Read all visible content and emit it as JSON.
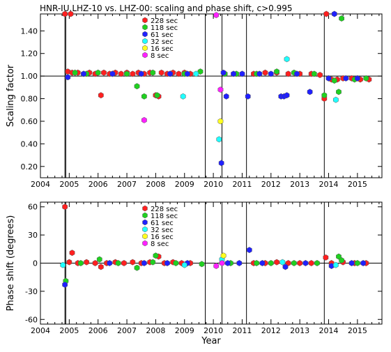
{
  "title": "HNR-IU.LHZ-10 vs. LHZ-00: scaling and phase shift, c>0.995",
  "chart_data": [
    {
      "type": "scatter",
      "ylabel": "Scaling factor",
      "xlim": [
        2004.0,
        2015.85
      ],
      "ylim": [
        0.1,
        1.55
      ],
      "yticks": [
        0.2,
        0.4,
        0.6,
        0.8,
        1.0,
        1.2,
        1.4
      ],
      "ytick_labels": [
        "0.20",
        "0.40",
        "0.60",
        "0.80",
        "1.00",
        "1.20",
        "1.40"
      ],
      "reference_line": 1.0,
      "event_lines": [
        2004.85,
        2004.88,
        2009.72,
        2010.3,
        2011.15,
        2013.85
      ],
      "legend": [
        {
          "label": "228 sec",
          "color": "#ff2020"
        },
        {
          "label": "118 sec",
          "color": "#20d020"
        },
        {
          "label": "61 sec",
          "color": "#2020ff"
        },
        {
          "label": "32 sec",
          "color": "#20ffff"
        },
        {
          "label": "16 sec",
          "color": "#ffff20"
        },
        {
          "label": "8 sec",
          "color": "#ff20ff"
        }
      ],
      "series": [
        {
          "name": "228 sec",
          "color": "#ff2020",
          "points": [
            [
              2004.85,
              1.55
            ],
            [
              2005.05,
              1.55
            ],
            [
              2004.95,
              1.04
            ],
            [
              2005.1,
              1.03
            ],
            [
              2005.3,
              1.03
            ],
            [
              2005.5,
              1.02
            ],
            [
              2005.7,
              1.03
            ],
            [
              2005.9,
              1.02
            ],
            [
              2006.1,
              0.83
            ],
            [
              2006.2,
              1.03
            ],
            [
              2006.4,
              1.02
            ],
            [
              2006.6,
              1.03
            ],
            [
              2006.8,
              1.02
            ],
            [
              2007.0,
              1.03
            ],
            [
              2007.2,
              1.02
            ],
            [
              2007.4,
              1.03
            ],
            [
              2007.6,
              1.02
            ],
            [
              2007.8,
              1.03
            ],
            [
              2008.0,
              0.83
            ],
            [
              2008.1,
              0.82
            ],
            [
              2008.2,
              1.03
            ],
            [
              2008.4,
              1.02
            ],
            [
              2008.6,
              1.03
            ],
            [
              2008.8,
              1.02
            ],
            [
              2009.0,
              1.03
            ],
            [
              2009.2,
              1.02
            ],
            [
              2011.4,
              1.02
            ],
            [
              2011.8,
              1.03
            ],
            [
              2012.2,
              1.03
            ],
            [
              2012.6,
              1.02
            ],
            [
              2013.0,
              1.02
            ],
            [
              2013.4,
              1.02
            ],
            [
              2013.7,
              1.01
            ],
            [
              2013.85,
              0.8
            ],
            [
              2013.92,
              1.55
            ],
            [
              2014.1,
              0.97
            ],
            [
              2014.3,
              0.97
            ],
            [
              2014.5,
              0.98
            ],
            [
              2014.8,
              0.98
            ],
            [
              2015.1,
              0.97
            ],
            [
              2015.4,
              0.97
            ]
          ]
        },
        {
          "name": "118 sec",
          "color": "#20d020",
          "points": [
            [
              2005.2,
              1.03
            ],
            [
              2005.6,
              1.02
            ],
            [
              2006.0,
              1.03
            ],
            [
              2006.5,
              1.02
            ],
            [
              2007.0,
              1.02
            ],
            [
              2007.35,
              0.91
            ],
            [
              2007.6,
              0.82
            ],
            [
              2007.9,
              1.03
            ],
            [
              2008.05,
              0.83
            ],
            [
              2008.5,
              1.02
            ],
            [
              2009.0,
              1.02
            ],
            [
              2009.55,
              1.04
            ],
            [
              2010.4,
              1.02
            ],
            [
              2010.8,
              1.02
            ],
            [
              2011.5,
              1.02
            ],
            [
              2012.2,
              1.04
            ],
            [
              2012.8,
              1.03
            ],
            [
              2013.5,
              1.02
            ],
            [
              2013.85,
              0.83
            ],
            [
              2014.2,
              0.96
            ],
            [
              2014.35,
              0.86
            ],
            [
              2014.45,
              1.51
            ],
            [
              2014.9,
              0.97
            ],
            [
              2015.3,
              0.98
            ]
          ]
        },
        {
          "name": "61 sec",
          "color": "#2020ff",
          "points": [
            [
              2004.95,
              0.99
            ],
            [
              2005.5,
              1.02
            ],
            [
              2006.5,
              1.02
            ],
            [
              2007.5,
              1.02
            ],
            [
              2008.5,
              1.02
            ],
            [
              2009.1,
              1.02
            ],
            [
              2010.28,
              0.23
            ],
            [
              2010.35,
              1.03
            ],
            [
              2010.45,
              0.82
            ],
            [
              2010.7,
              1.02
            ],
            [
              2011.0,
              1.02
            ],
            [
              2011.2,
              0.82
            ],
            [
              2011.6,
              1.02
            ],
            [
              2012.0,
              1.02
            ],
            [
              2012.35,
              0.82
            ],
            [
              2012.45,
              0.82
            ],
            [
              2012.55,
              0.83
            ],
            [
              2012.9,
              1.02
            ],
            [
              2013.35,
              0.86
            ],
            [
              2014.0,
              0.98
            ],
            [
              2014.2,
              1.55
            ],
            [
              2014.6,
              0.98
            ],
            [
              2015.0,
              0.98
            ]
          ]
        },
        {
          "name": "32 sec",
          "color": "#20ffff",
          "points": [
            [
              2008.95,
              0.82
            ],
            [
              2010.2,
              0.44
            ],
            [
              2012.55,
              1.15
            ],
            [
              2014.25,
              0.79
            ],
            [
              2009.4,
              1.02
            ]
          ]
        },
        {
          "name": "16 sec",
          "color": "#ffff20",
          "points": [
            [
              2010.25,
              0.6
            ]
          ]
        },
        {
          "name": "8 sec",
          "color": "#ff20ff",
          "points": [
            [
              2007.6,
              0.61
            ],
            [
              2010.1,
              1.54
            ],
            [
              2010.25,
              0.88
            ]
          ]
        }
      ]
    },
    {
      "type": "scatter",
      "ylabel": "Phase shift (degrees)",
      "xlabel": "Year",
      "xlim": [
        2004.0,
        2015.85
      ],
      "ylim": [
        -65,
        65
      ],
      "yticks": [
        -60,
        -30,
        0,
        30,
        60
      ],
      "ytick_labels": [
        "-60",
        "-30",
        "0",
        "30",
        "60"
      ],
      "xticks": [
        2004,
        2005,
        2006,
        2007,
        2008,
        2009,
        2010,
        2011,
        2012,
        2013,
        2014,
        2015
      ],
      "xtick_labels": [
        "2004",
        "2005",
        "2006",
        "2007",
        "2008",
        "2009",
        "2010",
        "2011",
        "2012",
        "2013",
        "2014",
        "2015"
      ],
      "reference_line": 0,
      "event_lines": [
        2004.85,
        2004.88,
        2009.72,
        2010.3,
        2011.15,
        2013.85
      ],
      "legend": [
        {
          "label": "228 sec",
          "color": "#ff2020"
        },
        {
          "label": "118 sec",
          "color": "#20d020"
        },
        {
          "label": "61 sec",
          "color": "#2020ff"
        },
        {
          "label": "32 sec",
          "color": "#20ffff"
        },
        {
          "label": "16 sec",
          "color": "#ffff20"
        },
        {
          "label": "8 sec",
          "color": "#ff20ff"
        }
      ],
      "series": [
        {
          "name": "228 sec",
          "color": "#ff2020",
          "points": [
            [
              2004.85,
              60
            ],
            [
              2005.1,
              11
            ],
            [
              2005.0,
              1
            ],
            [
              2005.3,
              0
            ],
            [
              2005.6,
              1
            ],
            [
              2005.9,
              0
            ],
            [
              2006.1,
              -4
            ],
            [
              2006.3,
              0
            ],
            [
              2006.6,
              1
            ],
            [
              2006.9,
              0
            ],
            [
              2007.2,
              1
            ],
            [
              2007.5,
              0
            ],
            [
              2007.8,
              1
            ],
            [
              2008.1,
              7
            ],
            [
              2008.3,
              0
            ],
            [
              2008.6,
              1
            ],
            [
              2008.9,
              0
            ],
            [
              2009.2,
              0
            ],
            [
              2011.4,
              0
            ],
            [
              2011.8,
              0
            ],
            [
              2012.2,
              1
            ],
            [
              2012.6,
              0
            ],
            [
              2013.0,
              0
            ],
            [
              2013.4,
              0
            ],
            [
              2013.9,
              6
            ],
            [
              2014.1,
              0
            ],
            [
              2014.5,
              1
            ],
            [
              2014.9,
              0
            ],
            [
              2015.3,
              0
            ]
          ]
        },
        {
          "name": "118 sec",
          "color": "#20d020",
          "points": [
            [
              2004.88,
              -19
            ],
            [
              2005.4,
              0
            ],
            [
              2006.05,
              4
            ],
            [
              2006.7,
              0
            ],
            [
              2007.35,
              -5
            ],
            [
              2007.9,
              1
            ],
            [
              2008.0,
              8
            ],
            [
              2008.7,
              0
            ],
            [
              2009.6,
              -1
            ],
            [
              2010.6,
              0
            ],
            [
              2011.5,
              0
            ],
            [
              2012.0,
              0
            ],
            [
              2012.8,
              0
            ],
            [
              2013.6,
              0
            ],
            [
              2014.35,
              7
            ],
            [
              2014.45,
              3
            ],
            [
              2015.0,
              0
            ]
          ]
        },
        {
          "name": "61 sec",
          "color": "#2020ff",
          "points": [
            [
              2004.85,
              -23
            ],
            [
              2006.4,
              0
            ],
            [
              2007.6,
              0
            ],
            [
              2008.4,
              0
            ],
            [
              2009.1,
              0
            ],
            [
              2010.5,
              0
            ],
            [
              2010.9,
              0
            ],
            [
              2011.25,
              14
            ],
            [
              2011.7,
              0
            ],
            [
              2012.5,
              -4
            ],
            [
              2013.2,
              0
            ],
            [
              2014.1,
              -3
            ],
            [
              2014.8,
              0
            ],
            [
              2015.2,
              0
            ]
          ]
        },
        {
          "name": "32 sec",
          "color": "#20ffff",
          "points": [
            [
              2004.78,
              -2
            ],
            [
              2009.0,
              -2
            ],
            [
              2010.3,
              4
            ],
            [
              2012.4,
              1
            ],
            [
              2014.25,
              -2
            ]
          ]
        },
        {
          "name": "16 sec",
          "color": "#ffff20",
          "points": [
            [
              2010.35,
              8
            ]
          ]
        },
        {
          "name": "8 sec",
          "color": "#ff20ff",
          "points": [
            [
              2010.1,
              -3
            ],
            [
              2010.3,
              0
            ]
          ]
        }
      ]
    }
  ]
}
